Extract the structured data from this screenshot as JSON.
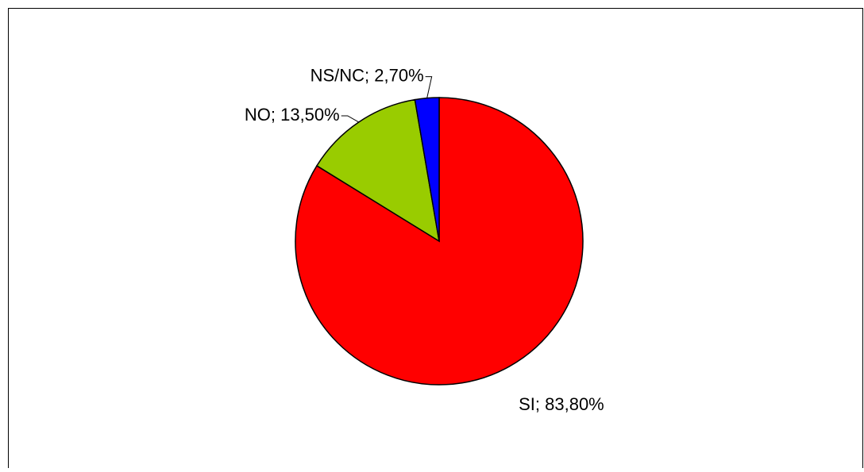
{
  "chart_data": {
    "type": "pie",
    "values": [
      83.8,
      13.5,
      2.7
    ],
    "value_labels": [
      "SI; 83,80%",
      "NO; 13,50%",
      "NS/NC; 2,70%"
    ],
    "colors": [
      "#ff0000",
      "#99cc00",
      "#0000ff"
    ]
  }
}
